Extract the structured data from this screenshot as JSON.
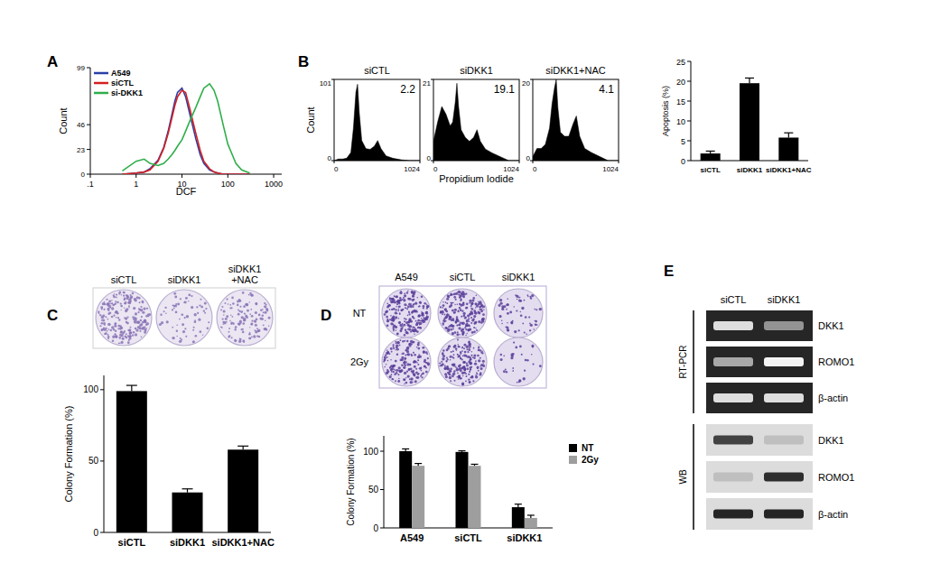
{
  "panel_labels": [
    "A",
    "B",
    "C",
    "D",
    "E"
  ],
  "chart_data": [
    {
      "type": "line",
      "x_label": "DCF",
      "y_label": "Count",
      "log": "x",
      "legend": "top-left",
      "xlim": [
        0.1,
        1500
      ],
      "xticks": [
        {
          "value": 0.1,
          "label": ".1"
        },
        1,
        10,
        100,
        1000
      ],
      "ylim": [
        0,
        99
      ],
      "yticks": [
        0,
        23,
        46,
        99
      ],
      "x": [
        0.5,
        1,
        1.5,
        2,
        3,
        4,
        5,
        6,
        7,
        8,
        10,
        12,
        15,
        20,
        25,
        30,
        40,
        50,
        60,
        80,
        100,
        150,
        200,
        300
      ],
      "series": [
        {
          "name": "A549",
          "color": "#2b3ea8",
          "values": [
            0,
            1,
            2,
            5,
            13,
            25,
            40,
            55,
            68,
            76,
            80,
            72,
            55,
            33,
            18,
            10,
            4,
            2,
            1,
            0,
            0,
            0,
            0,
            0
          ]
        },
        {
          "name": "siCTL",
          "color": "#d42020",
          "values": [
            0,
            1,
            2,
            4,
            12,
            24,
            38,
            52,
            64,
            72,
            78,
            76,
            60,
            38,
            22,
            12,
            5,
            2,
            1,
            0,
            0,
            0,
            0,
            0
          ]
        },
        {
          "name": "si-DKK1",
          "color": "#2fae4a",
          "values": [
            3,
            12,
            14,
            10,
            8,
            10,
            14,
            18,
            22,
            26,
            32,
            40,
            50,
            62,
            72,
            80,
            84,
            78,
            68,
            45,
            28,
            10,
            4,
            1
          ]
        }
      ]
    },
    {
      "type": "area",
      "title": "siCTL",
      "annotation": "2.2",
      "y_label": "Count",
      "color": "#000000",
      "xlim": [
        0,
        1024
      ],
      "xticks": [
        0,
        1024
      ],
      "ylim": [
        0,
        101
      ],
      "yticks": [
        0,
        101
      ],
      "x": [
        0,
        50,
        100,
        150,
        200,
        230,
        260,
        280,
        300,
        330,
        380,
        430,
        480,
        520,
        560,
        620,
        700,
        800,
        900,
        1024
      ],
      "values": [
        0,
        2,
        2,
        3,
        10,
        40,
        85,
        95,
        60,
        25,
        15,
        14,
        18,
        25,
        15,
        6,
        3,
        1,
        0,
        0
      ]
    },
    {
      "type": "area",
      "title": "siDKK1",
      "annotation": "19.1",
      "x_label": "Propidium Iodide",
      "color": "#000000",
      "xlim": [
        0,
        1024
      ],
      "xticks": [
        0,
        1024
      ],
      "ylim": [
        0,
        21
      ],
      "yticks": [
        0,
        21
      ],
      "x": [
        0,
        50,
        100,
        150,
        200,
        230,
        260,
        280,
        300,
        330,
        380,
        430,
        480,
        520,
        560,
        620,
        700,
        800,
        900,
        1024
      ],
      "values": [
        5,
        10,
        14,
        12,
        9,
        10,
        15,
        20,
        14,
        8,
        6,
        5,
        6,
        8,
        5,
        3,
        2,
        1,
        0,
        0
      ]
    },
    {
      "type": "area",
      "title": "siDKK1+NAC",
      "annotation": "4.1",
      "color": "#000000",
      "xlim": [
        0,
        1024
      ],
      "xticks": [
        0,
        1024
      ],
      "ylim": [
        0,
        20
      ],
      "yticks": [
        0,
        20
      ],
      "x": [
        0,
        50,
        100,
        150,
        200,
        230,
        260,
        280,
        300,
        330,
        380,
        430,
        480,
        520,
        560,
        620,
        700,
        800,
        900,
        1024
      ],
      "values": [
        1,
        3,
        3,
        4,
        8,
        14,
        18,
        20,
        13,
        7,
        6,
        6,
        9,
        11,
        6,
        3,
        2,
        1,
        0,
        0
      ]
    },
    {
      "type": "bar",
      "y_label": "Apoptosis (%)",
      "categories": [
        "siCTL",
        "siDKK1",
        "siDKK1+NAC"
      ],
      "values": [
        1.8,
        19.5,
        5.8
      ],
      "errors": [
        0.6,
        1.3,
        1.2
      ],
      "color": "#000000",
      "ylim": [
        0,
        25
      ],
      "yticks": [
        0,
        5,
        10,
        15,
        20,
        25
      ]
    },
    {
      "type": "bar",
      "y_label": "Colony Formation (%)",
      "categories": [
        "siCTL",
        "siDKK1",
        "siDKK1+NAC"
      ],
      "values": [
        99,
        28,
        58
      ],
      "errors": [
        4,
        2.5,
        2.5
      ],
      "color": "#000000",
      "ylim": [
        0,
        110
      ],
      "yticks": [
        0,
        50,
        100
      ]
    },
    {
      "type": "bar",
      "y_label": "Colony Formation (%)",
      "categories": [
        "A549",
        "siCTL",
        "siDKK1"
      ],
      "legend": "right",
      "series": [
        {
          "name": "NT",
          "color": "#000000",
          "values": [
            100,
            99,
            27
          ],
          "errors": [
            3,
            1.5,
            4
          ]
        },
        {
          "name": "2Gy",
          "color": "#9e9e9e",
          "values": [
            81,
            81,
            13
          ],
          "errors": [
            3,
            2,
            3.5
          ]
        }
      ],
      "ylim": [
        0,
        120
      ],
      "yticks": [
        0,
        50,
        100
      ]
    }
  ],
  "plates_c": {
    "labels": [
      "siCTL",
      "siDKK1",
      "siDKK1\n+NAC"
    ]
  },
  "plates_d": {
    "columns": [
      "A549",
      "siCTL",
      "siDKK1"
    ],
    "rows": [
      "NT",
      "2Gy"
    ]
  },
  "blot": {
    "columns": [
      "siCTL",
      "siDKK1"
    ],
    "groups": [
      {
        "label": "RT-PCR",
        "rows": [
          {
            "label": "DKK1",
            "intensity": [
              0.85,
              0.5
            ]
          },
          {
            "label": "ROMO1",
            "intensity": [
              0.6,
              0.95
            ]
          },
          {
            "label": "β-actin",
            "intensity": [
              0.85,
              0.85
            ]
          }
        ]
      },
      {
        "label": "WB",
        "rows": [
          {
            "label": "DKK1",
            "intensity": [
              0.8,
              0.15
            ]
          },
          {
            "label": "ROMO1",
            "intensity": [
              0.15,
              0.9
            ]
          },
          {
            "label": "β-actin",
            "intensity": [
              0.95,
              0.95
            ]
          }
        ]
      }
    ]
  }
}
